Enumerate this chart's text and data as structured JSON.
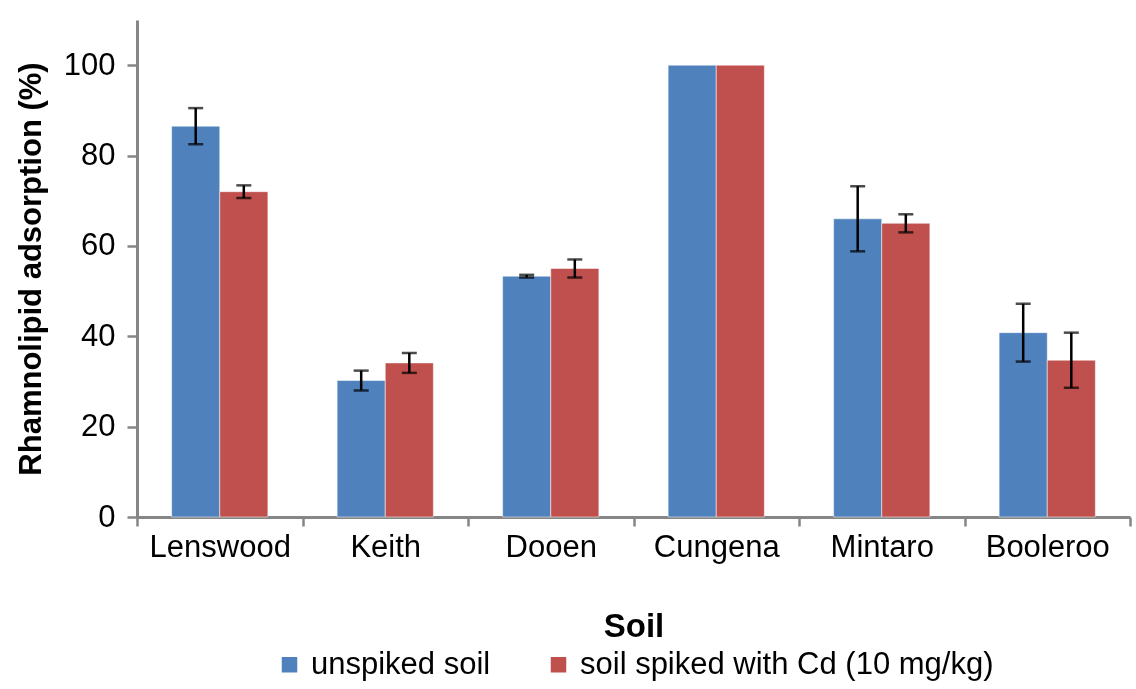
{
  "chart_data": {
    "type": "bar",
    "xlabel": "Soil",
    "ylabel": "Rhamnolipid adsorption  (%)",
    "categories": [
      "Lenswood",
      "Keith",
      "Dooen",
      "Cungena",
      "Mintaro",
      "Booleroo"
    ],
    "series": [
      {
        "name": "unspiked soil",
        "color": "#4f81bd",
        "values": [
          86.5,
          30.2,
          53.3,
          100,
          66,
          40.8
        ],
        "errors": [
          4,
          2.2,
          0.3,
          null,
          7.2,
          6.4
        ]
      },
      {
        "name": "soil spiked with Cd (10 mg/kg)",
        "color": "#c0504d",
        "values": [
          72,
          34.1,
          55,
          100,
          65,
          34.7
        ],
        "errors": [
          1.4,
          2.2,
          2,
          null,
          2,
          6.1
        ]
      }
    ],
    "ylim": [
      0,
      110
    ],
    "yticks": [
      0,
      20,
      40,
      60,
      80,
      100
    ],
    "legend": "bottom"
  }
}
